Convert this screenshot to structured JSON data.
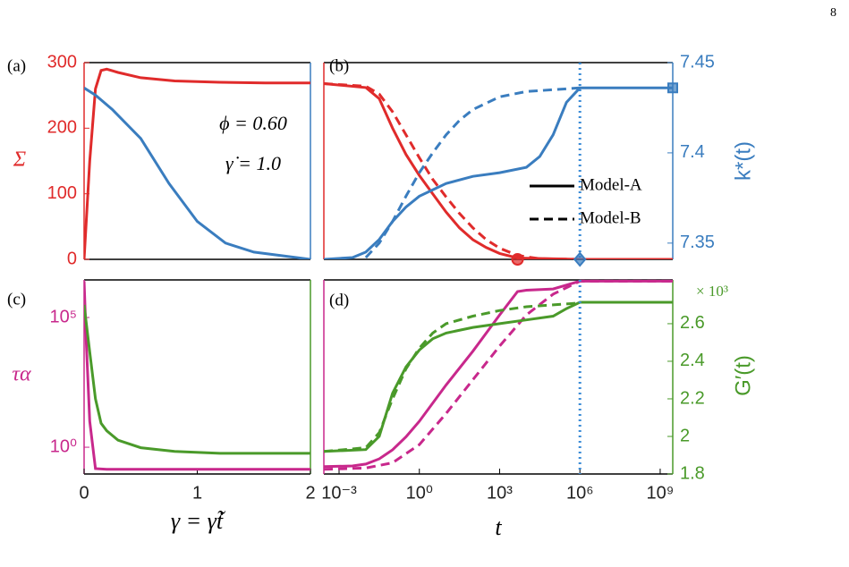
{
  "page_number": "8",
  "chart_data": [
    {
      "type": "line",
      "panel_label": "(a)",
      "ylabel": "Σ",
      "ycolor": "#e02b2b",
      "y2color": "#3a7dbf",
      "annotations": [
        "ϕ = 0.60",
        "γ̇ = 1.0"
      ],
      "xlim": [
        0,
        2
      ],
      "ylim": [
        0,
        300
      ],
      "yticks": [
        0,
        100,
        200,
        300
      ],
      "y2lim": [
        7.341,
        7.45
      ],
      "series": [
        {
          "color": "#e02b2b",
          "dash": "solid",
          "x": [
            0,
            0.05,
            0.1,
            0.15,
            0.2,
            0.3,
            0.5,
            0.8,
            1.2,
            1.6,
            2
          ],
          "values": [
            0,
            150,
            260,
            288,
            290,
            285,
            277,
            272,
            270,
            269,
            269
          ]
        },
        {
          "color": "#3a7dbf",
          "dash": "solid",
          "axis": "y2",
          "x": [
            0,
            0.1,
            0.25,
            0.5,
            0.75,
            1,
            1.25,
            1.5,
            2
          ],
          "values": [
            7.436,
            7.432,
            7.424,
            7.408,
            7.383,
            7.362,
            7.35,
            7.345,
            7.341
          ]
        }
      ]
    },
    {
      "type": "line",
      "panel_label": "(b)",
      "y2label": "k*(t)",
      "ycolor": "#e02b2b",
      "y2color": "#3a7dbf",
      "xscale": "log",
      "xlim": [
        0.00027,
        2950000000
      ],
      "ylim": [
        0,
        300
      ],
      "y2lim": [
        7.341,
        7.45
      ],
      "y2ticks": [
        7.35,
        7.4,
        7.45
      ],
      "vline": 1000000,
      "legend": [
        {
          "label": "Model-A",
          "dash": "solid"
        },
        {
          "label": "Model-B",
          "dash": "dashed"
        }
      ],
      "series": [
        {
          "color": "#e02b2b",
          "dash": "solid",
          "x": [
            0.00027,
            0.01,
            0.0316,
            0.1,
            0.316,
            1,
            3.16,
            10,
            31.6,
            100,
            316,
            1000,
            4680,
            1000000,
            2950000000
          ],
          "values": [
            268,
            262,
            245,
            200,
            160,
            128,
            100,
            72,
            48,
            30,
            18,
            9,
            2,
            0,
            0
          ]
        },
        {
          "color": "#e02b2b",
          "dash": "dashed",
          "x": [
            0.00027,
            0.01,
            0.0316,
            0.1,
            0.316,
            1,
            3.16,
            10,
            31.6,
            100,
            316,
            1000,
            4680,
            31600,
            1000000
          ],
          "values": [
            268,
            264,
            252,
            225,
            190,
            155,
            122,
            95,
            70,
            48,
            30,
            17,
            6,
            1,
            0
          ]
        },
        {
          "color": "#3a7dbf",
          "dash": "solid",
          "axis": "y2",
          "x": [
            0.00027,
            0.00316,
            0.01,
            0.0316,
            0.1,
            0.316,
            1,
            10,
            100,
            1000,
            10000,
            31600,
            100000,
            316000,
            1000000,
            2950000000
          ],
          "values": [
            7.341,
            7.342,
            7.345,
            7.352,
            7.362,
            7.37,
            7.376,
            7.383,
            7.387,
            7.389,
            7.392,
            7.398,
            7.41,
            7.428,
            7.436,
            7.436
          ]
        },
        {
          "color": "#3a7dbf",
          "dash": "dashed",
          "axis": "y2",
          "x": [
            0.01,
            0.0316,
            0.1,
            0.316,
            1,
            3.16,
            10,
            31.6,
            100,
            1000,
            10000,
            100000,
            1000000
          ],
          "values": [
            7.342,
            7.35,
            7.362,
            7.376,
            7.389,
            7.4,
            7.41,
            7.418,
            7.424,
            7.431,
            7.434,
            7.435,
            7.436
          ]
        }
      ],
      "points": [
        {
          "x": 4680,
          "y": 0,
          "color": "#e02b2b",
          "shape": "circle"
        },
        {
          "x": 1000000,
          "y": 7.341,
          "axis": "y2",
          "color": "#3a7dbf",
          "shape": "diamond"
        },
        {
          "x": 2950000000,
          "y": 7.436,
          "axis": "y2",
          "color": "#3a7dbf",
          "shape": "square"
        }
      ]
    },
    {
      "type": "line",
      "panel_label": "(c)",
      "ylabel": "τα",
      "xlabel": "γ = γ̇t̃",
      "ycolor": "#c8288c",
      "y2color": "#4a9a2a",
      "yscale": "log",
      "xlim": [
        0,
        2
      ],
      "xticks": [
        0,
        1,
        2
      ],
      "ylim": [
        0.093,
        2800000
      ],
      "yticks": [
        {
          "value": 1,
          "label": "10⁰"
        },
        {
          "value": 100000,
          "label": "10⁵"
        }
      ],
      "y2lim": [
        1.8,
        2.833
      ],
      "series": [
        {
          "color": "#c8288c",
          "dash": "solid",
          "x": [
            0,
            0.02,
            0.05,
            0.1,
            0.2,
            2
          ],
          "values": [
            2500000,
            10000,
            10,
            0.15,
            0.14,
            0.14
          ]
        },
        {
          "color": "#4a9a2a",
          "dash": "solid",
          "axis": "y2",
          "x": [
            0,
            0.05,
            0.1,
            0.15,
            0.2,
            0.3,
            0.5,
            0.8,
            1.2,
            2
          ],
          "values": [
            2.7,
            2.45,
            2.2,
            2.07,
            2.03,
            1.98,
            1.94,
            1.92,
            1.91,
            1.91
          ]
        }
      ]
    },
    {
      "type": "line",
      "panel_label": "(d)",
      "xlabel": "t",
      "y2label": "G′(t)",
      "y2note": "× 10³",
      "ycolor": "#c8288c",
      "y2color": "#4a9a2a",
      "xscale": "log",
      "yscale": "log",
      "xlim": [
        0.00027,
        2950000000
      ],
      "xticks": [
        {
          "value": 0.001,
          "label": "10⁻³"
        },
        {
          "value": 1,
          "label": "10⁰"
        },
        {
          "value": 1000,
          "label": "10³"
        },
        {
          "value": 1000000,
          "label": "10⁶"
        },
        {
          "value": 1000000000,
          "label": "10⁹"
        }
      ],
      "ylim": [
        0.093,
        2800000
      ],
      "y2lim": [
        1.8,
        2.833
      ],
      "y2ticks": [
        1.8,
        2,
        2.2,
        2.4,
        2.6
      ],
      "vline": 1000000,
      "series": [
        {
          "color": "#c8288c",
          "dash": "solid",
          "x": [
            0.00027,
            0.00316,
            0.01,
            0.0316,
            0.1,
            0.316,
            1,
            10,
            100,
            1000,
            4680,
            10000,
            100000,
            1000000,
            2950000000
          ],
          "values": [
            0.178,
            0.19,
            0.224,
            0.355,
            0.794,
            2.51,
            10,
            251,
            5010,
            126000,
            1000000,
            1120000,
            1260000,
            2510000,
            2510000
          ]
        },
        {
          "color": "#c8288c",
          "dash": "dashed",
          "x": [
            0.00027,
            0.01,
            0.1,
            1,
            10,
            100,
            1000,
            10000,
            100000,
            1000000,
            2950000000
          ],
          "values": [
            0.141,
            0.158,
            0.251,
            1.26,
            20,
            398,
            7940,
            126000,
            794000,
            2510000,
            2510000
          ]
        },
        {
          "color": "#4a9a2a",
          "dash": "solid",
          "axis": "y2",
          "x": [
            0.00027,
            0.01,
            0.0316,
            0.1,
            0.316,
            1,
            3.16,
            10,
            100,
            1000,
            10000,
            100000,
            316000,
            1000000,
            2950000000
          ],
          "values": [
            1.92,
            1.93,
            2.0,
            2.23,
            2.37,
            2.46,
            2.52,
            2.55,
            2.58,
            2.6,
            2.62,
            2.64,
            2.68,
            2.714,
            2.714
          ]
        },
        {
          "color": "#4a9a2a",
          "dash": "dashed",
          "axis": "y2",
          "x": [
            0.00027,
            0.01,
            0.0316,
            0.1,
            0.316,
            1,
            3.16,
            10,
            100,
            1000,
            10000,
            100000,
            1000000
          ],
          "values": [
            1.92,
            1.94,
            2.02,
            2.2,
            2.36,
            2.47,
            2.55,
            2.6,
            2.64,
            2.67,
            2.69,
            2.7,
            2.71
          ]
        }
      ]
    }
  ]
}
